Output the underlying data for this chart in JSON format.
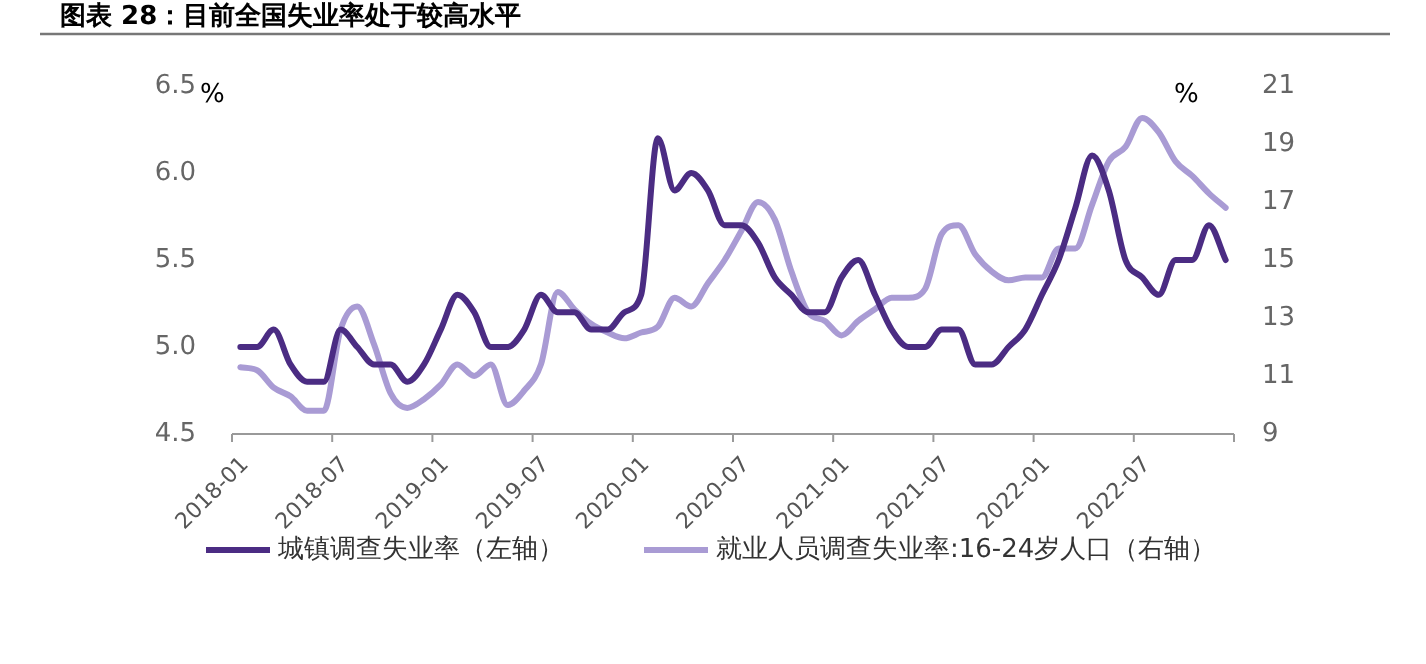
{
  "chart_data": {
    "type": "line",
    "title": "图表 28：目前全国失业率处于较高水平",
    "categories": [
      "2018-01",
      null,
      null,
      null,
      null,
      null,
      "2018-07",
      null,
      null,
      null,
      null,
      null,
      "2019-01",
      null,
      null,
      null,
      null,
      null,
      "2019-07",
      null,
      null,
      null,
      null,
      null,
      "2020-01",
      null,
      null,
      null,
      null,
      null,
      "2020-07",
      null,
      null,
      null,
      null,
      null,
      "2021-01",
      null,
      null,
      null,
      null,
      null,
      "2021-07",
      null,
      null,
      null,
      null,
      null,
      "2022-01",
      null,
      null,
      null,
      null,
      null,
      "2022-07",
      null,
      null,
      null,
      null,
      null
    ],
    "series": [
      {
        "name": "城镇调查失业率（左轴）",
        "color": "#4b2c83",
        "values": [
          5.0,
          5.0,
          5.1,
          4.9,
          4.8,
          4.8,
          5.1,
          5.0,
          4.9,
          4.9,
          4.8,
          4.9,
          5.1,
          5.3,
          5.2,
          5.0,
          5.0,
          5.1,
          5.3,
          5.2,
          5.2,
          5.1,
          5.1,
          5.2,
          5.3,
          6.2,
          5.9,
          6.0,
          5.9,
          5.7,
          5.7,
          5.6,
          5.4,
          5.3,
          5.2,
          5.2,
          5.4,
          5.5,
          5.3,
          5.1,
          5.0,
          5.0,
          5.1,
          5.1,
          4.9,
          4.9,
          5.0,
          5.1,
          5.3,
          5.5,
          5.8,
          6.1,
          5.9,
          5.5,
          5.4,
          5.3,
          5.5,
          5.5,
          5.7,
          5.5
        ]
      },
      {
        "name": "就业人员调查失业率:16-24岁人口（右轴）",
        "color": "#a99bd4",
        "axis": "y2",
        "values": [
          11.3,
          11.2,
          10.6,
          10.3,
          9.8,
          9.8,
          12.6,
          13.4,
          12.1,
          10.4,
          9.9,
          10.2,
          10.7,
          11.4,
          11.0,
          11.4,
          10.0,
          10.5,
          11.4,
          13.9,
          13.3,
          12.8,
          12.5,
          12.3,
          12.5,
          12.7,
          13.7,
          13.4,
          14.2,
          15.0,
          16.0,
          17.0,
          16.4,
          14.6,
          13.2,
          12.9,
          12.4,
          12.9,
          13.3,
          13.7,
          13.7,
          14.0,
          15.9,
          16.2,
          15.2,
          14.6,
          14.3,
          14.4,
          14.4,
          15.4,
          15.4,
          16.9,
          18.4,
          18.9,
          19.9,
          19.4,
          18.4,
          17.9,
          17.3,
          16.8
        ]
      }
    ],
    "ylabel": "%",
    "y2label": "%",
    "ylim": [
      4.5,
      6.5
    ],
    "yticks": [
      4.5,
      {
        "value": 5,
        "label": "5.0"
      },
      5.5,
      {
        "value": 6,
        "label": "6.0"
      },
      6.5
    ],
    "y2lim": [
      9,
      21
    ],
    "y2ticks": [
      9,
      11,
      13,
      15,
      17,
      19,
      21
    ],
    "legend": "bottom",
    "grid": false,
    "line_style": "solid"
  }
}
